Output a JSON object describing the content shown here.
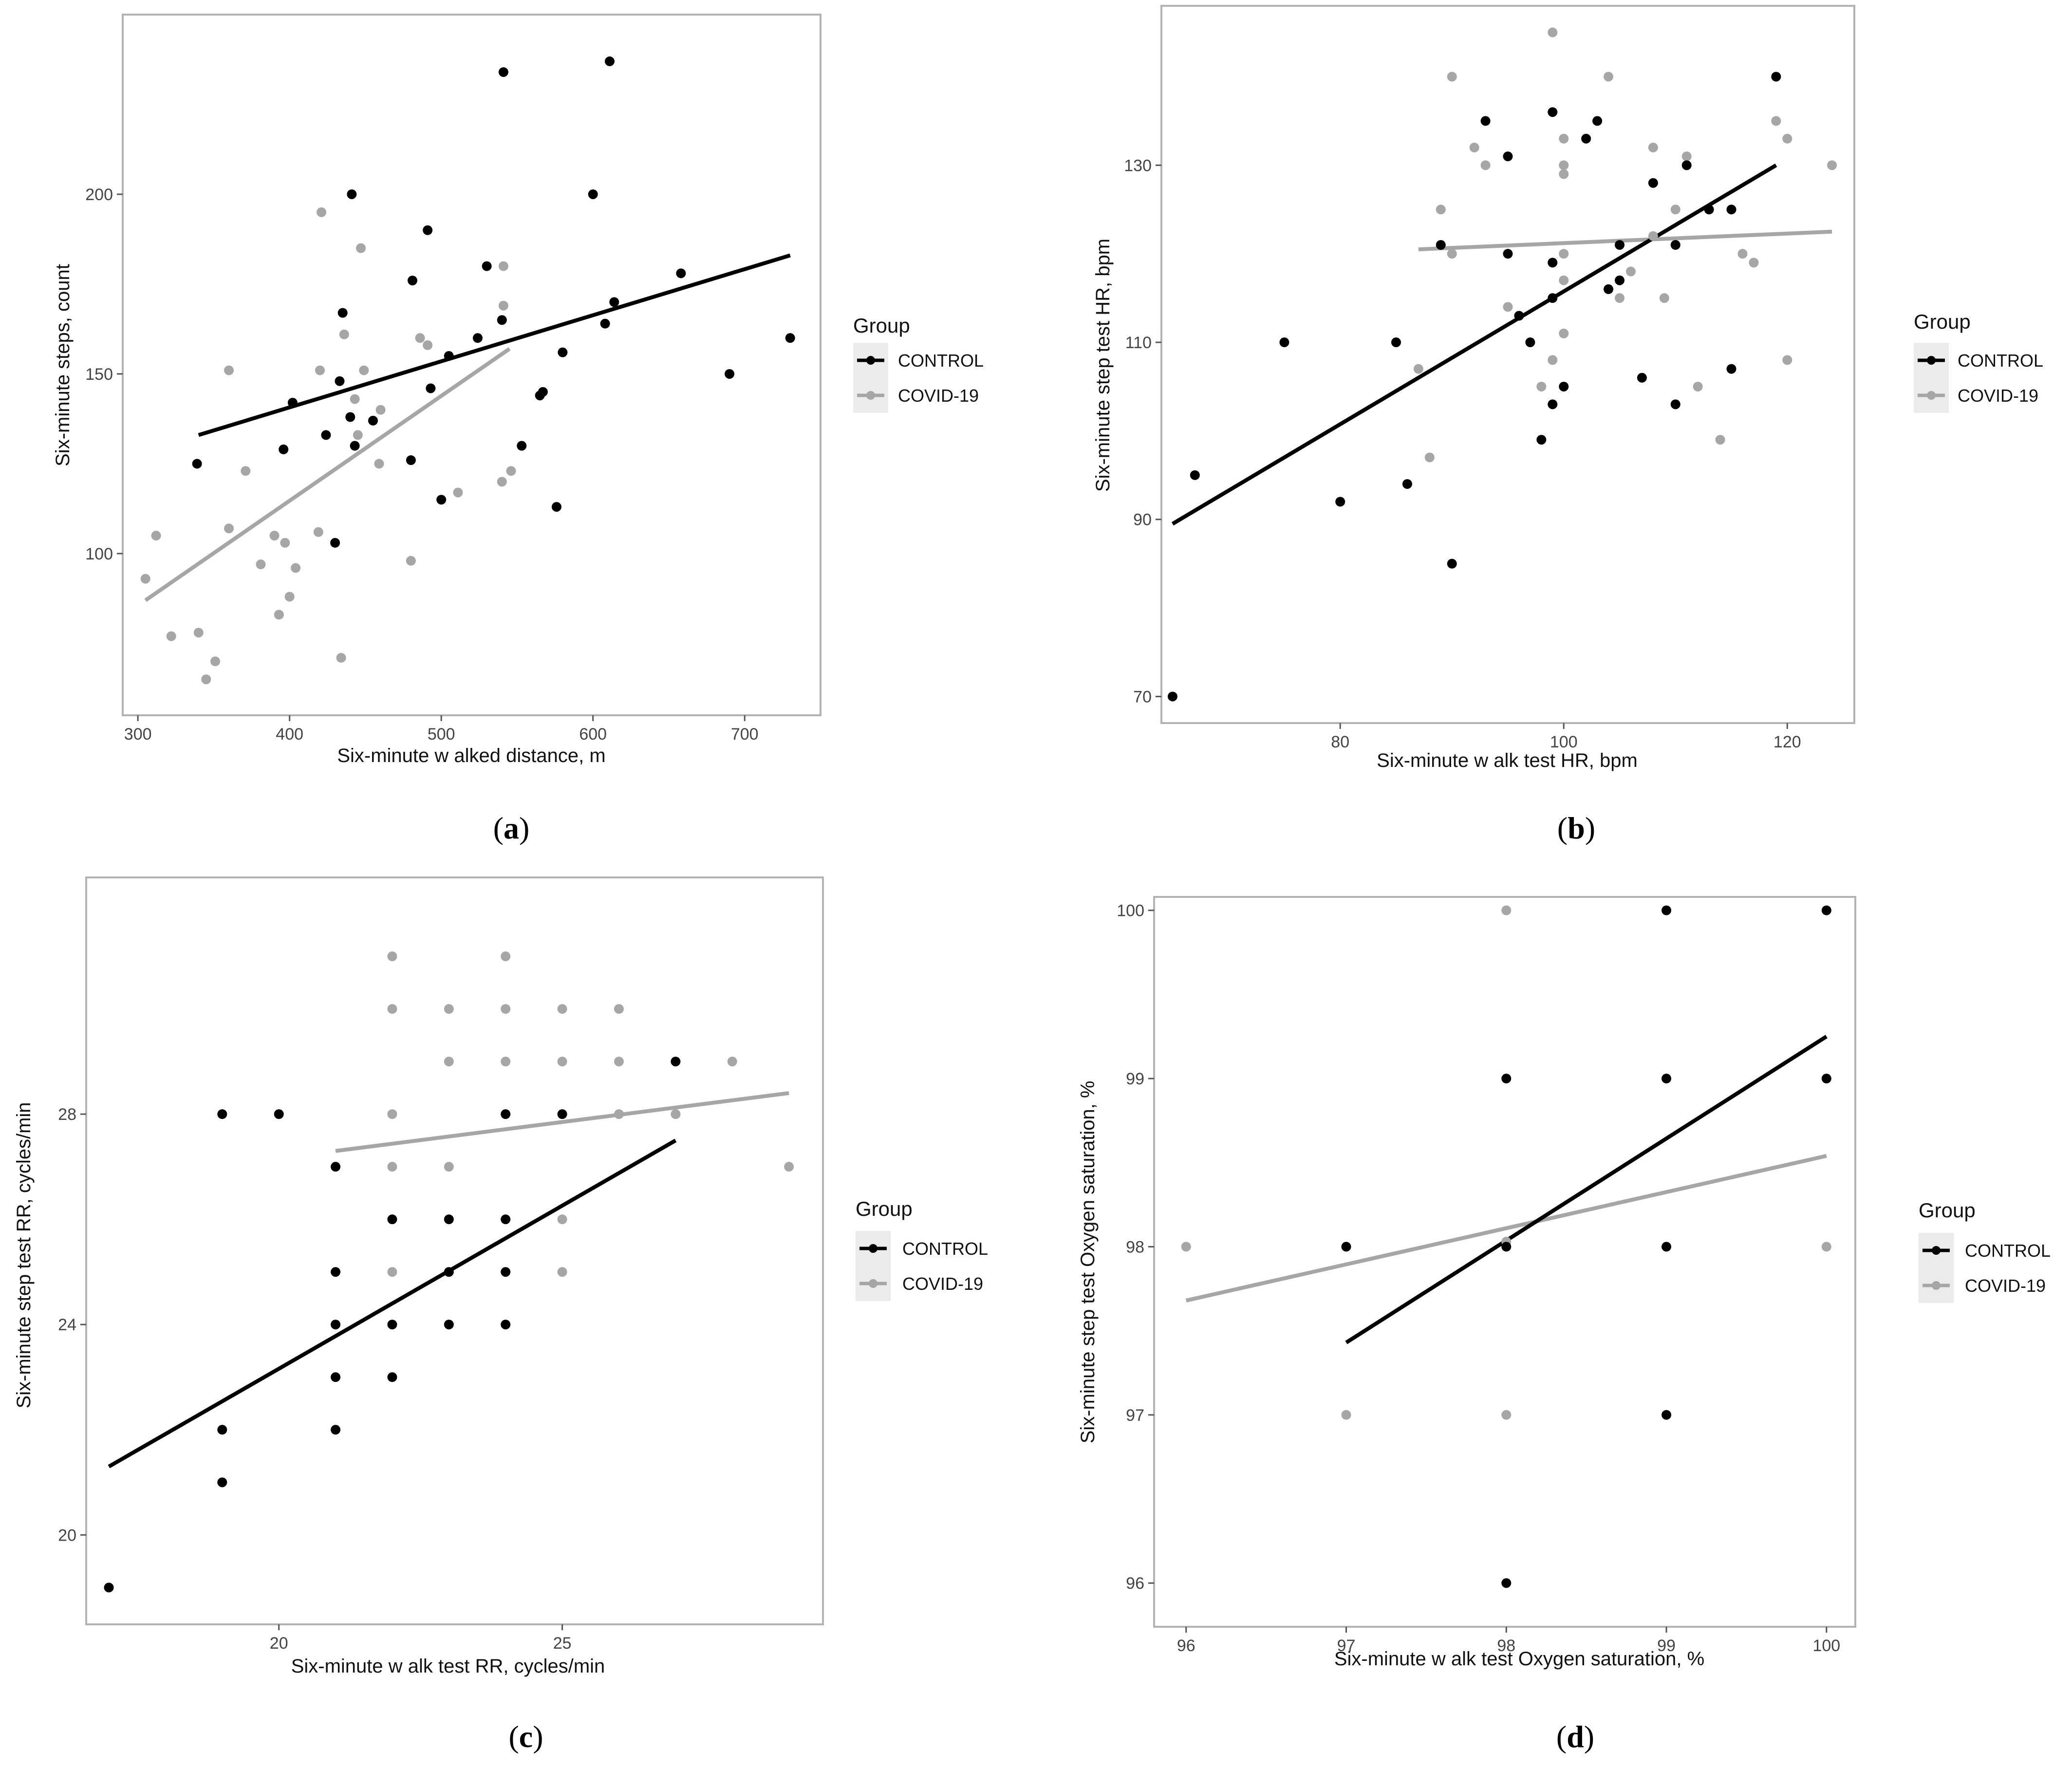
{
  "colors": {
    "control": "#000000",
    "covid": "#a6a6a6",
    "frame": "#b3b3b3",
    "legend_bg": "#ebebeb"
  },
  "chart_data": [
    {
      "id": "a",
      "type": "scatter",
      "caption_letter": "a",
      "xlabel": "Six-minute w alked distance, m",
      "ylabel": "Six-minute steps, count",
      "xlim": [
        290,
        750
      ],
      "ylim": [
        55,
        250
      ],
      "xticks": [
        300,
        400,
        500,
        600,
        700
      ],
      "yticks": [
        100,
        150,
        200
      ],
      "legend": {
        "title": "Group",
        "entries": [
          "CONTROL",
          "COVID-19"
        ]
      },
      "series": [
        {
          "name": "CONTROL",
          "points": [
            [
              339,
              125
            ],
            [
              396,
              129
            ],
            [
              402,
              142
            ],
            [
              424,
              133
            ],
            [
              430,
              103
            ],
            [
              433,
              148
            ],
            [
              435,
              167
            ],
            [
              440,
              138
            ],
            [
              441,
              200
            ],
            [
              443,
              130
            ],
            [
              455,
              137
            ],
            [
              480,
              126
            ],
            [
              481,
              176
            ],
            [
              491,
              190
            ],
            [
              493,
              146
            ],
            [
              500,
              115
            ],
            [
              505,
              155
            ],
            [
              524,
              160
            ],
            [
              530,
              180
            ],
            [
              540,
              165
            ],
            [
              541,
              234
            ],
            [
              553,
              130
            ],
            [
              565,
              144
            ],
            [
              567,
              145
            ],
            [
              576,
              113
            ],
            [
              580,
              156
            ],
            [
              600,
              200
            ],
            [
              608,
              164
            ],
            [
              611,
              237
            ],
            [
              614,
              170
            ],
            [
              658,
              178
            ],
            [
              690,
              150
            ],
            [
              730,
              160
            ]
          ],
          "fit": [
            [
              340,
              133
            ],
            [
              730,
              183
            ]
          ]
        },
        {
          "name": "COVID-19",
          "points": [
            [
              305,
              93
            ],
            [
              312,
              105
            ],
            [
              322,
              77
            ],
            [
              340,
              78
            ],
            [
              345,
              65
            ],
            [
              351,
              70
            ],
            [
              360,
              151
            ],
            [
              360,
              107
            ],
            [
              371,
              123
            ],
            [
              381,
              97
            ],
            [
              390,
              105
            ],
            [
              393,
              83
            ],
            [
              397,
              103
            ],
            [
              400,
              88
            ],
            [
              404,
              96
            ],
            [
              419,
              106
            ],
            [
              420,
              151
            ],
            [
              421,
              195
            ],
            [
              434,
              71
            ],
            [
              436,
              161
            ],
            [
              443,
              143
            ],
            [
              447,
              185
            ],
            [
              449,
              151
            ],
            [
              459,
              125
            ],
            [
              460,
              140
            ],
            [
              480,
              98
            ],
            [
              486,
              160
            ],
            [
              491,
              158
            ],
            [
              511,
              117
            ],
            [
              540,
              120
            ],
            [
              541,
              180
            ],
            [
              541,
              169
            ],
            [
              546,
              123
            ],
            [
              445,
              133
            ]
          ],
          "fit": [
            [
              305,
              87
            ],
            [
              545,
              157
            ]
          ]
        }
      ]
    },
    {
      "id": "b",
      "type": "scatter",
      "caption_letter": "b",
      "xlabel": "Six-minute w alk test HR, bpm",
      "ylabel": "Six-minute step test HR, bpm",
      "xlim": [
        64,
        126
      ],
      "ylim": [
        67,
        148
      ],
      "xticks": [
        80,
        100,
        120
      ],
      "yticks": [
        70,
        90,
        110,
        130
      ],
      "legend": {
        "title": "Group",
        "entries": [
          "CONTROL",
          "COVID-19"
        ]
      },
      "series": [
        {
          "name": "CONTROL",
          "points": [
            [
              65,
              70
            ],
            [
              67,
              95
            ],
            [
              75,
              110
            ],
            [
              80,
              92
            ],
            [
              85,
              110
            ],
            [
              86,
              94
            ],
            [
              89,
              121
            ],
            [
              90,
              85
            ],
            [
              93,
              135
            ],
            [
              95,
              131
            ],
            [
              95,
              120
            ],
            [
              96,
              113
            ],
            [
              97,
              110
            ],
            [
              98,
              99
            ],
            [
              99,
              136
            ],
            [
              99,
              119
            ],
            [
              99,
              115
            ],
            [
              99,
              103
            ],
            [
              100,
              105
            ],
            [
              102,
              133
            ],
            [
              103,
              135
            ],
            [
              104,
              116
            ],
            [
              105,
              117
            ],
            [
              105,
              121
            ],
            [
              107,
              106
            ],
            [
              108,
              128
            ],
            [
              110,
              121
            ],
            [
              110,
              103
            ],
            [
              111,
              130
            ],
            [
              113,
              125
            ],
            [
              115,
              125
            ],
            [
              115,
              107
            ],
            [
              119,
              140
            ]
          ],
          "fit": [
            [
              65,
              89.5
            ],
            [
              119,
              130
            ]
          ]
        },
        {
          "name": "COVID-19",
          "points": [
            [
              87,
              107
            ],
            [
              88,
              97
            ],
            [
              89,
              125
            ],
            [
              90,
              140
            ],
            [
              90,
              120
            ],
            [
              92,
              132
            ],
            [
              93,
              130
            ],
            [
              95,
              114
            ],
            [
              98,
              105
            ],
            [
              99,
              145
            ],
            [
              99,
              108
            ],
            [
              100,
              133
            ],
            [
              100,
              130
            ],
            [
              100,
              129
            ],
            [
              100,
              120
            ],
            [
              100,
              117
            ],
            [
              100,
              111
            ],
            [
              104,
              140
            ],
            [
              105,
              115
            ],
            [
              106,
              118
            ],
            [
              108,
              132
            ],
            [
              108,
              122
            ],
            [
              109,
              115
            ],
            [
              110,
              125
            ],
            [
              111,
              131
            ],
            [
              112,
              105
            ],
            [
              114,
              99
            ],
            [
              116,
              120
            ],
            [
              117,
              119
            ],
            [
              119,
              135
            ],
            [
              120,
              133
            ],
            [
              120,
              108
            ],
            [
              124,
              130
            ]
          ],
          "fit": [
            [
              87,
              120.5
            ],
            [
              124,
              122.5
            ]
          ]
        }
      ]
    },
    {
      "id": "c",
      "type": "scatter",
      "caption_letter": "c",
      "xlabel": "Six-minute w alk test RR, cycles/min",
      "ylabel": "Six-minute step test RR, cycles/min",
      "xlim": [
        16.6,
        29.6
      ],
      "ylim": [
        18.3,
        32.5
      ],
      "xticks": [
        20,
        25
      ],
      "yticks": [
        20,
        24,
        28
      ],
      "legend": {
        "title": "Group",
        "entries": [
          "CONTROL",
          "COVID-19"
        ]
      },
      "series": [
        {
          "name": "CONTROL",
          "points": [
            [
              17,
              19
            ],
            [
              19,
              28
            ],
            [
              19,
              22
            ],
            [
              19,
              21
            ],
            [
              20,
              28
            ],
            [
              21,
              27
            ],
            [
              21,
              25
            ],
            [
              21,
              24
            ],
            [
              21,
              23
            ],
            [
              21,
              22
            ],
            [
              22,
              26
            ],
            [
              22,
              24
            ],
            [
              22,
              23
            ],
            [
              23,
              26
            ],
            [
              23,
              25
            ],
            [
              23,
              24
            ],
            [
              24,
              28
            ],
            [
              24,
              26
            ],
            [
              24,
              25
            ],
            [
              24,
              24
            ],
            [
              25,
              28
            ],
            [
              27,
              29
            ]
          ],
          "fit": [
            [
              17,
              21.3
            ],
            [
              27,
              27.5
            ]
          ]
        },
        {
          "name": "COVID-19",
          "points": [
            [
              22,
              31
            ],
            [
              22,
              30
            ],
            [
              22,
              28
            ],
            [
              22,
              27
            ],
            [
              22,
              25
            ],
            [
              23,
              30
            ],
            [
              23,
              29
            ],
            [
              23,
              27
            ],
            [
              24,
              31
            ],
            [
              24,
              30
            ],
            [
              24,
              29
            ],
            [
              25,
              30
            ],
            [
              25,
              29
            ],
            [
              25,
              26
            ],
            [
              25,
              25
            ],
            [
              26,
              30
            ],
            [
              26,
              29
            ],
            [
              26,
              28
            ],
            [
              27,
              28
            ],
            [
              28,
              29
            ],
            [
              29,
              27
            ]
          ],
          "fit": [
            [
              21,
              27.3
            ],
            [
              29,
              28.4
            ]
          ]
        }
      ]
    },
    {
      "id": "d",
      "type": "scatter",
      "caption_letter": "d",
      "xlabel": "Six-minute w alk test Oxygen saturation, %",
      "ylabel": "Six-minute step test Oxygen saturation, %",
      "xlim": [
        95.8,
        100.18
      ],
      "ylim": [
        95.74,
        100.08
      ],
      "xticks": [
        96,
        97,
        98,
        99,
        100
      ],
      "yticks": [
        96,
        97,
        98,
        99,
        100
      ],
      "legend": {
        "title": "Group",
        "entries": [
          "CONTROL",
          "COVID-19"
        ]
      },
      "series": [
        {
          "name": "CONTROL",
          "points": [
            [
              97,
              98
            ],
            [
              98,
              99
            ],
            [
              98,
              98
            ],
            [
              98,
              96
            ],
            [
              99,
              100
            ],
            [
              99,
              99
            ],
            [
              99,
              98
            ],
            [
              99,
              97
            ],
            [
              100,
              100
            ],
            [
              100,
              99
            ]
          ],
          "fit": [
            [
              97,
              97.43
            ],
            [
              100,
              99.25
            ]
          ]
        },
        {
          "name": "COVID-19",
          "points": [
            [
              96,
              98
            ],
            [
              97,
              97
            ],
            [
              98,
              100
            ],
            [
              98,
              97
            ],
            [
              100,
              98
            ],
            [
              98,
              98.03
            ]
          ],
          "fit": [
            [
              96,
              97.68
            ],
            [
              100,
              98.54
            ]
          ]
        }
      ]
    }
  ]
}
